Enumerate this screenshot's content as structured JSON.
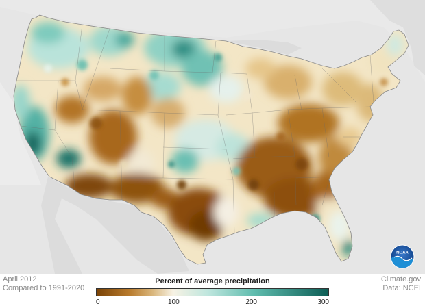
{
  "map": {
    "period": "April 2012",
    "baseline": "Compared to 1991-2020",
    "source_site": "Climate.gov",
    "source_data": "Data: NCEI",
    "legend": {
      "title": "Percent of average precipitation",
      "min": 0,
      "max": 300,
      "ticks": [
        "0",
        "100",
        "200",
        "300"
      ],
      "tick_values": [
        0,
        100,
        200,
        300
      ]
    },
    "colors": {
      "very_dry": "#7a4306",
      "dry": "#b87a2c",
      "moderately_dry": "#d9b57a",
      "near_normal": "#f7f2e4",
      "moderately_wet": "#bfe6de",
      "wet": "#5fbcae",
      "very_wet": "#0d5e56",
      "background": "#e6e6e6",
      "ocean": "#ececec"
    },
    "logo": "noaa-logo",
    "logo_text": "NOAA"
  }
}
